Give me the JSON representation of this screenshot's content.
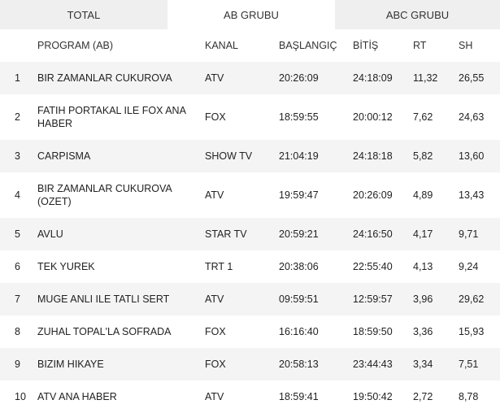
{
  "tabs": [
    "TOTAL",
    "AB GRUBU",
    "ABC GRUBU"
  ],
  "active_tab": 1,
  "table": {
    "headers": {
      "rank": "",
      "program": "PROGRAM (AB)",
      "channel": "KANAL",
      "start": "BAŞLANGIÇ",
      "end": "BİTİŞ",
      "rt": "RT",
      "sh": "SH"
    },
    "rows": [
      {
        "rank": "1",
        "program": "BIR ZAMANLAR CUKUROVA",
        "channel": "ATV",
        "start": "20:26:09",
        "end": "24:18:09",
        "rt": "11,32",
        "sh": "26,55"
      },
      {
        "rank": "2",
        "program": "FATIH PORTAKAL ILE FOX ANA HABER",
        "channel": "FOX",
        "start": "18:59:55",
        "end": "20:00:12",
        "rt": "7,62",
        "sh": "24,63"
      },
      {
        "rank": "3",
        "program": "CARPISMA",
        "channel": "SHOW TV",
        "start": "21:04:19",
        "end": "24:18:18",
        "rt": "5,82",
        "sh": "13,60"
      },
      {
        "rank": "4",
        "program": "BIR ZAMANLAR CUKUROVA (OZET)",
        "channel": "ATV",
        "start": "19:59:47",
        "end": "20:26:09",
        "rt": "4,89",
        "sh": "13,43"
      },
      {
        "rank": "5",
        "program": "AVLU",
        "channel": "STAR TV",
        "start": "20:59:21",
        "end": "24:16:50",
        "rt": "4,17",
        "sh": "9,71"
      },
      {
        "rank": "6",
        "program": "TEK YUREK",
        "channel": "TRT 1",
        "start": "20:38:06",
        "end": "22:55:40",
        "rt": "4,13",
        "sh": "9,24"
      },
      {
        "rank": "7",
        "program": "MUGE ANLI ILE TATLI SERT",
        "channel": "ATV",
        "start": "09:59:51",
        "end": "12:59:57",
        "rt": "3,96",
        "sh": "29,62"
      },
      {
        "rank": "8",
        "program": "ZUHAL TOPAL'LA SOFRADA",
        "channel": "FOX",
        "start": "16:16:40",
        "end": "18:59:50",
        "rt": "3,36",
        "sh": "15,93"
      },
      {
        "rank": "9",
        "program": "BIZIM HIKAYE",
        "channel": "FOX",
        "start": "20:58:13",
        "end": "23:44:43",
        "rt": "3,34",
        "sh": "7,51"
      },
      {
        "rank": "10",
        "program": "ATV ANA HABER",
        "channel": "ATV",
        "start": "18:59:41",
        "end": "19:50:42",
        "rt": "2,72",
        "sh": "8,78"
      }
    ]
  }
}
